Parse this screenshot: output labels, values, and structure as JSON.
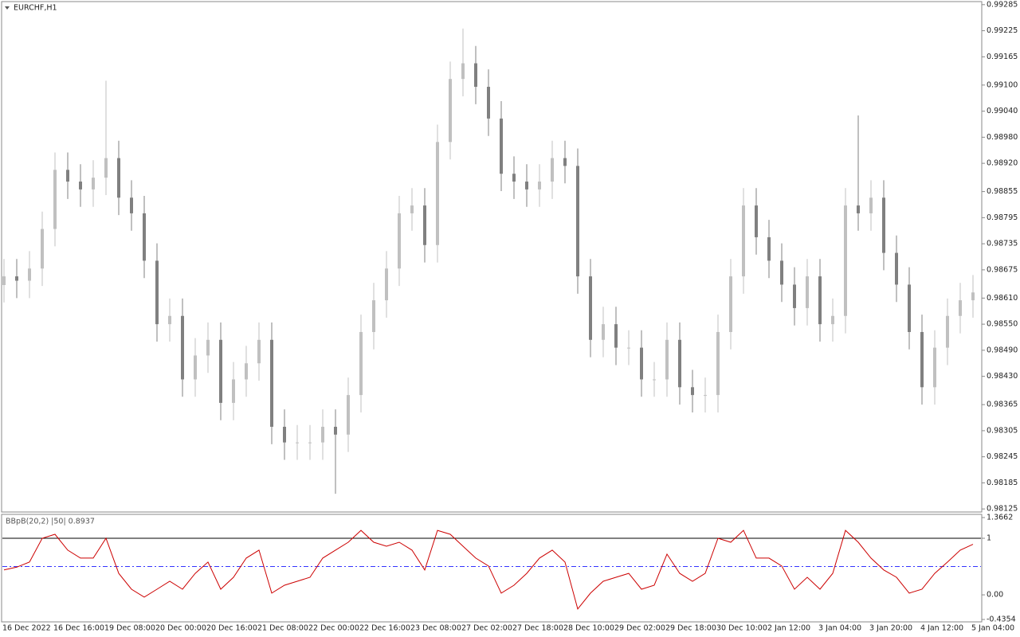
{
  "chart_data": [
    {
      "type": "candlestick",
      "title": "EURCHF,H1",
      "categories": [
        "16 Dec 2022",
        null,
        null,
        null,
        "16 Dec 16:00",
        null,
        null,
        null,
        "19 Dec 08:00",
        null,
        null,
        null,
        "20 Dec 00:00",
        null,
        null,
        null,
        "20 Dec 16:00",
        null,
        null,
        null,
        "21 Dec 08:00",
        null,
        null,
        null,
        "22 Dec 00:00",
        null,
        null,
        null,
        "22 Dec 16:00",
        null,
        null,
        null,
        "23 Dec 08:00",
        null,
        null,
        null,
        "27 Dec 02:00",
        null,
        null,
        null,
        "27 Dec 18:00",
        null,
        null,
        null,
        "28 Dec 10:00",
        null,
        null,
        null,
        "29 Dec 02:00",
        null,
        null,
        null,
        "29 Dec 18:00",
        null,
        null,
        null,
        "30 Dec 10:00",
        null,
        null,
        null,
        "2 Jan 12:00",
        null,
        null,
        null,
        "3 Jan 04:00",
        null,
        null,
        null,
        "3 Jan 20:00",
        null,
        null,
        null,
        "4 Jan 12:00",
        null,
        null,
        null,
        "5 Jan 04:00"
      ],
      "open": [
        0.9864,
        0.9866,
        0.9865,
        0.98678,
        0.98769,
        0.98905,
        0.98878,
        0.9886,
        0.98887,
        0.98932,
        0.98841,
        0.98805,
        0.98696,
        0.9855,
        0.98569,
        0.98423,
        0.98478,
        0.98514,
        0.98369,
        0.98423,
        0.9846,
        0.98514,
        0.98314,
        0.98278,
        0.98278,
        0.98278,
        0.98314,
        0.98296,
        0.98387,
        0.98532,
        0.98605,
        0.98678,
        0.98805,
        0.98823,
        0.98732,
        0.98969,
        0.99114,
        0.9915,
        0.99096,
        0.99023,
        0.98896,
        0.98878,
        0.9886,
        0.98878,
        0.98932,
        0.98914,
        0.9866,
        0.98514,
        0.9855,
        0.98496,
        0.98496,
        0.98423,
        0.98423,
        0.98514,
        0.98405,
        0.98387,
        0.98387,
        0.98532,
        0.9866,
        0.98823,
        0.9875,
        0.98696,
        0.98641,
        0.98587,
        0.9866,
        0.9855,
        0.98569,
        0.98823,
        0.98805,
        0.98841,
        0.98714,
        0.98641,
        0.98532,
        0.98405,
        0.98496,
        0.98569,
        0.98605
      ],
      "high": [
        0.987,
        0.987,
        0.98718,
        0.98809,
        0.98945,
        0.98945,
        0.98918,
        0.98927,
        0.9911,
        0.98972,
        0.98881,
        0.98845,
        0.98736,
        0.98609,
        0.98609,
        0.98518,
        0.98554,
        0.98554,
        0.98463,
        0.985,
        0.98554,
        0.98554,
        0.98354,
        0.98318,
        0.98318,
        0.98354,
        0.98354,
        0.98427,
        0.98572,
        0.98645,
        0.98718,
        0.98845,
        0.98863,
        0.98863,
        0.99009,
        0.99154,
        0.9923,
        0.9919,
        0.99136,
        0.99063,
        0.98936,
        0.98918,
        0.98918,
        0.98972,
        0.98972,
        0.98954,
        0.987,
        0.9859,
        0.9859,
        0.98536,
        0.98536,
        0.98463,
        0.98554,
        0.98554,
        0.98445,
        0.98427,
        0.98572,
        0.987,
        0.98863,
        0.98863,
        0.9879,
        0.98736,
        0.98681,
        0.987,
        0.987,
        0.98609,
        0.98863,
        0.9903,
        0.98881,
        0.98881,
        0.98754,
        0.98681,
        0.98572,
        0.98536,
        0.98609,
        0.98645,
        0.98663
      ],
      "low": [
        0.986,
        0.9861,
        0.9861,
        0.98638,
        0.98729,
        0.98838,
        0.9882,
        0.9882,
        0.98847,
        0.98801,
        0.98765,
        0.98656,
        0.9851,
        0.9851,
        0.98383,
        0.98383,
        0.98438,
        0.98329,
        0.98329,
        0.98383,
        0.9842,
        0.98274,
        0.98238,
        0.98238,
        0.98238,
        0.98238,
        0.9816,
        0.98256,
        0.98347,
        0.98492,
        0.98565,
        0.98638,
        0.98765,
        0.98692,
        0.98692,
        0.98929,
        0.99074,
        0.99056,
        0.98983,
        0.98856,
        0.98838,
        0.9882,
        0.9882,
        0.98838,
        0.98874,
        0.9862,
        0.98474,
        0.98474,
        0.98456,
        0.98456,
        0.98383,
        0.98383,
        0.98383,
        0.98365,
        0.98347,
        0.98347,
        0.98347,
        0.98492,
        0.9862,
        0.9871,
        0.98656,
        0.98601,
        0.98547,
        0.98547,
        0.9851,
        0.9851,
        0.98529,
        0.98765,
        0.98765,
        0.98674,
        0.98601,
        0.98492,
        0.98365,
        0.98365,
        0.98456,
        0.98529,
        0.98565
      ],
      "close": [
        0.9866,
        0.9865,
        0.98678,
        0.98769,
        0.98905,
        0.98878,
        0.9886,
        0.98887,
        0.98932,
        0.98841,
        0.98805,
        0.98696,
        0.9855,
        0.98569,
        0.98423,
        0.98478,
        0.98514,
        0.98369,
        0.98423,
        0.9846,
        0.98514,
        0.98314,
        0.98278,
        0.98278,
        0.98278,
        0.98314,
        0.98296,
        0.98387,
        0.98532,
        0.98605,
        0.98678,
        0.98805,
        0.98823,
        0.98732,
        0.98969,
        0.99114,
        0.9915,
        0.99096,
        0.99023,
        0.98896,
        0.98878,
        0.9886,
        0.98878,
        0.98932,
        0.98914,
        0.9866,
        0.98514,
        0.9855,
        0.98496,
        0.98496,
        0.98423,
        0.98423,
        0.98514,
        0.98405,
        0.98387,
        0.98387,
        0.98532,
        0.9866,
        0.98823,
        0.9875,
        0.98696,
        0.98641,
        0.98587,
        0.9866,
        0.9855,
        0.98569,
        0.98823,
        0.98805,
        0.98841,
        0.98714,
        0.98641,
        0.98532,
        0.98405,
        0.98496,
        0.98569,
        0.98605,
        0.98623
      ],
      "up_color": "#c0c0c0",
      "down_color": "#808080",
      "ylim": [
        0.98118,
        0.99292
      ],
      "yticks": [
        0.99285,
        0.99225,
        0.99165,
        {
          "value": 0.991,
          "label": "0.99100"
        },
        {
          "value": 0.9904,
          "label": "0.99040"
        },
        {
          "value": 0.9898,
          "label": "0.98980"
        },
        {
          "value": 0.9892,
          "label": "0.98920"
        },
        0.98855,
        0.98795,
        0.98735,
        0.98675,
        {
          "value": 0.9861,
          "label": "0.98610"
        },
        {
          "value": 0.9855,
          "label": "0.98550"
        },
        {
          "value": 0.9849,
          "label": "0.98490"
        },
        {
          "value": 0.9843,
          "label": "0.98430"
        },
        0.98365,
        0.98305,
        0.98245,
        0.98185,
        0.98125
      ]
    },
    {
      "type": "line",
      "title": "BBpB(20,2) |50| 0.8937",
      "series": [
        {
          "color": "#cc0000",
          "values": [
            0.44,
            0.49,
            0.58,
            1.0,
            1.07,
            0.79,
            0.65,
            0.65,
            1.0,
            0.38,
            0.1,
            -0.04,
            0.1,
            0.24,
            0.1,
            0.38,
            0.58,
            0.1,
            0.31,
            0.65,
            0.79,
            0.03,
            0.17,
            0.24,
            0.31,
            0.65,
            0.79,
            0.93,
            1.14,
            0.93,
            0.86,
            0.93,
            0.79,
            0.44,
            1.14,
            1.07,
            0.86,
            0.65,
            0.51,
            0.03,
            0.17,
            0.38,
            0.65,
            0.79,
            0.58,
            -0.25,
            0.03,
            0.24,
            0.31,
            0.38,
            0.1,
            0.17,
            0.72,
            0.38,
            0.24,
            0.38,
            1.0,
            0.93,
            1.14,
            0.65,
            0.65,
            0.51,
            0.1,
            0.31,
            0.1,
            0.38,
            1.14,
            0.93,
            0.65,
            0.44,
            0.31,
            0.03,
            0.1,
            0.38,
            0.58,
            0.79,
            0.8937
          ]
        }
      ],
      "ylim": [
        -0.4354,
        1.3662
      ],
      "yticks": [
        1.3662,
        1,
        {
          "value": 0,
          "label": "0.00"
        },
        -0.4354
      ],
      "levels": [
        {
          "value": 1,
          "color": "#000000",
          "dash": "none"
        },
        {
          "value": 0.5,
          "color": "#3333ff",
          "dash": "6 3 2 3"
        }
      ]
    }
  ]
}
